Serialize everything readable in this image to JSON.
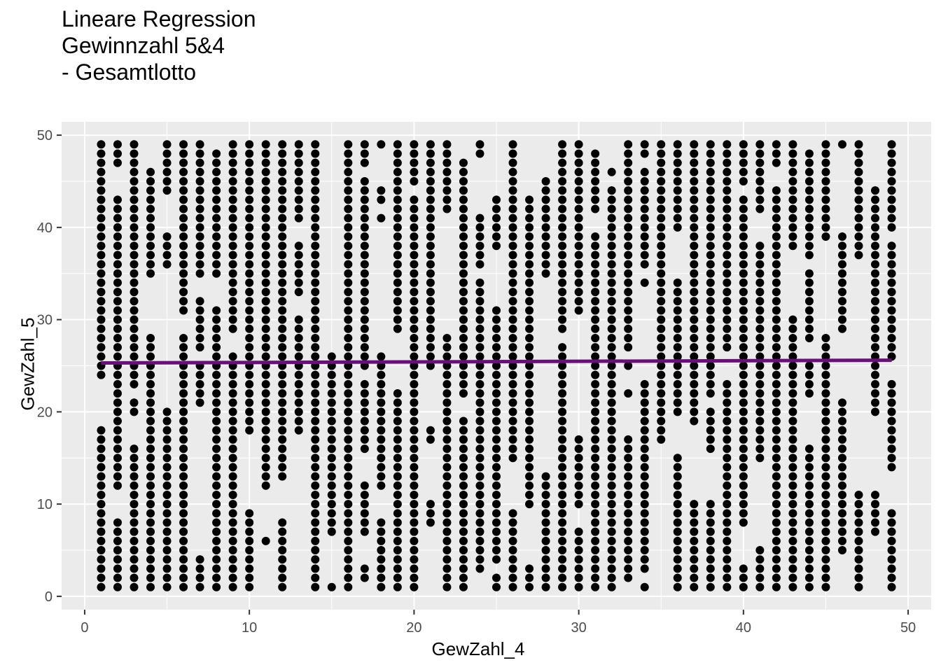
{
  "chart_data": {
    "type": "scatter",
    "title_lines": [
      "Lineare Regression",
      "Gewinnzahl 5&4",
      "- Gesamtlotto"
    ],
    "xlabel": "GewZahl_4",
    "ylabel": "GewZahl_5",
    "xlim": [
      -1.4,
      51.4
    ],
    "ylim": [
      -1.45,
      51.45
    ],
    "x_ticks": [
      0,
      10,
      20,
      30,
      40,
      50
    ],
    "y_ticks": [
      0,
      10,
      20,
      30,
      40,
      50
    ],
    "x_values": [
      1,
      2,
      3,
      4,
      5,
      6,
      7,
      8,
      9,
      10,
      11,
      12,
      13,
      14,
      15,
      16,
      17,
      18,
      19,
      20,
      21,
      22,
      23,
      24,
      25,
      26,
      27,
      28,
      29,
      30,
      31,
      32,
      33,
      34,
      35,
      36,
      37,
      38,
      39,
      40,
      41,
      42,
      43,
      44,
      45,
      46,
      47,
      48,
      49
    ],
    "y_values": [
      1,
      2,
      3,
      4,
      5,
      6,
      7,
      8,
      9,
      10,
      11,
      12,
      13,
      14,
      15,
      16,
      17,
      18,
      19,
      20,
      21,
      22,
      23,
      24,
      25,
      26,
      27,
      28,
      29,
      30,
      31,
      32,
      33,
      34,
      35,
      36,
      37,
      38,
      39,
      40,
      41,
      42,
      43,
      44,
      45,
      46,
      47,
      48,
      49
    ],
    "point_density": 0.82,
    "point_color": "#000000",
    "regression_line": {
      "x": [
        1,
        49
      ],
      "y": [
        25.3,
        25.6
      ],
      "color": "#6a0f7a"
    },
    "panel_background": "#ebebeb",
    "grid": true,
    "grid_color": "#ffffff",
    "legend": "none"
  }
}
